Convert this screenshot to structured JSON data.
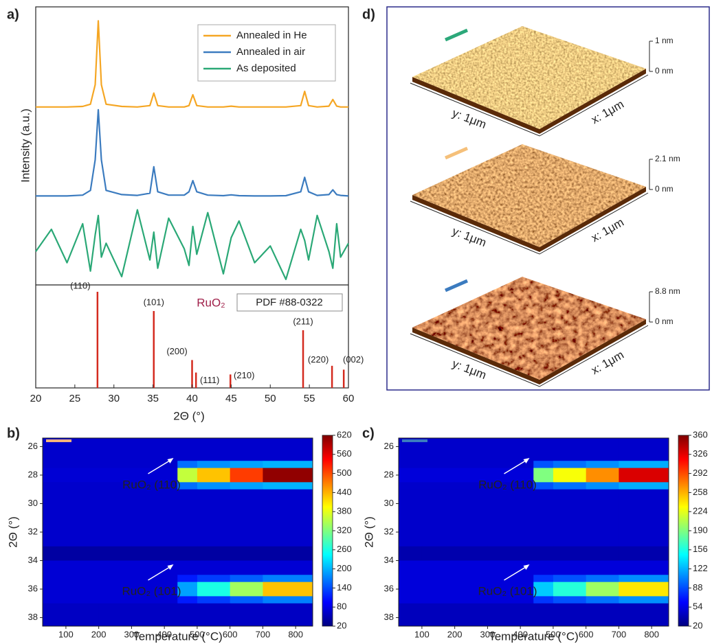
{
  "chart_data": [
    {
      "type": "line",
      "label": "a)",
      "ylabel": "Intensity (a.u.)",
      "xlim": [
        20,
        60
      ],
      "ylim": [
        0,
        100
      ],
      "legend": "upper right",
      "x": [
        20,
        22,
        24,
        26,
        27,
        27.6,
        28,
        28.4,
        29,
        31,
        33,
        34.6,
        35.1,
        35.6,
        37,
        39,
        39.6,
        40.1,
        40.6,
        42,
        44,
        45,
        46,
        48,
        50,
        52,
        53.9,
        54.4,
        54.9,
        56,
        57.5,
        58,
        58.5,
        59,
        60
      ],
      "series": [
        {
          "name": "Annealed in He",
          "color": "#f5a623",
          "values": [
            64,
            64,
            64,
            64.2,
            65,
            72,
            95,
            72,
            65,
            64.2,
            64,
            64.5,
            69,
            64.5,
            64,
            64,
            64.5,
            68.4,
            64.5,
            64,
            64,
            64.3,
            64,
            64,
            64,
            64,
            64.5,
            69.6,
            64.5,
            64,
            64.3,
            66.7,
            64.3,
            64,
            64
          ]
        },
        {
          "name": "Annealed in air",
          "color": "#3b7bbf",
          "values": [
            32,
            32,
            32,
            32.3,
            34,
            45,
            63,
            45,
            34,
            32.5,
            32.2,
            33,
            42.5,
            33.5,
            32.3,
            32.3,
            33.5,
            37.5,
            33.5,
            32.3,
            32.1,
            32.4,
            32.1,
            32,
            32,
            32.1,
            33.5,
            38.7,
            33.5,
            32.2,
            32.5,
            34.2,
            32.5,
            32.2,
            32
          ]
        },
        {
          "name": "As deposited",
          "color": "#2aa876",
          "values": [
            12,
            20,
            8,
            22,
            5,
            18,
            25,
            10,
            15,
            3,
            27,
            9,
            19,
            6,
            24,
            13,
            7,
            21,
            11,
            26,
            4,
            17,
            23,
            8,
            14,
            2,
            20,
            16,
            9,
            25,
            12,
            6,
            22,
            10,
            15
          ]
        }
      ]
    },
    {
      "type": "stick",
      "title": "RuO₂",
      "reference": "PDF #88-0322",
      "xlabel": "2Θ (°)",
      "color": "#d42a1e",
      "xlim": [
        20,
        60
      ],
      "xticks": [
        20,
        25,
        30,
        35,
        40,
        45,
        50,
        55,
        60
      ],
      "ylim": [
        0,
        100
      ],
      "categories": [
        "(110)",
        "(101)",
        "(200)",
        "(111)",
        "(210)",
        "(211)",
        "(220)",
        "(002)"
      ],
      "x": [
        27.9,
        35.1,
        40.0,
        40.5,
        44.9,
        54.2,
        57.9,
        59.4
      ],
      "values": [
        100,
        80,
        29,
        16,
        14,
        60,
        23,
        19
      ]
    },
    {
      "type": "heatmap",
      "label": "b)",
      "xlabel": "Temperature (°C)",
      "ylabel": "2Θ (°)",
      "colormap": "jet",
      "marker_color": "#f5b27a",
      "xlim": [
        29,
        852
      ],
      "ylim": [
        38.6,
        25.4
      ],
      "xticks": [
        100,
        200,
        300,
        400,
        500,
        600,
        700,
        800
      ],
      "yticks": [
        26,
        28,
        30,
        32,
        34,
        36,
        38
      ],
      "zlim": [
        20,
        620
      ],
      "zticks": [
        20,
        80,
        140,
        200,
        260,
        320,
        380,
        440,
        500,
        560,
        620
      ],
      "annotations": [
        "RuO₂ (110)",
        "RuO₂ (101)"
      ],
      "x_edges": [
        29,
        100,
        200,
        300,
        440,
        500,
        600,
        700,
        852
      ],
      "y_edges": [
        25.4,
        27,
        27.5,
        28.5,
        29,
        33,
        34,
        35,
        35.5,
        36.5,
        37,
        38.6
      ],
      "z": [
        [
          65,
          65,
          65,
          65,
          65,
          65,
          65,
          65
        ],
        [
          65,
          65,
          65,
          65,
          160,
          180,
          190,
          200
        ],
        [
          70,
          70,
          70,
          70,
          360,
          430,
          510,
          610
        ],
        [
          65,
          65,
          65,
          65,
          160,
          180,
          190,
          200
        ],
        [
          65,
          65,
          65,
          65,
          65,
          65,
          65,
          65
        ],
        [
          40,
          40,
          40,
          40,
          40,
          40,
          40,
          40
        ],
        [
          70,
          70,
          70,
          70,
          70,
          70,
          70,
          70
        ],
        [
          70,
          70,
          70,
          70,
          110,
          130,
          150,
          170
        ],
        [
          70,
          70,
          70,
          70,
          190,
          260,
          340,
          430
        ],
        [
          70,
          70,
          70,
          70,
          110,
          130,
          150,
          170
        ],
        [
          60,
          60,
          60,
          60,
          60,
          60,
          60,
          60
        ]
      ]
    },
    {
      "type": "heatmap",
      "label": "c)",
      "xlabel": "Temperature (°C)",
      "ylabel": "2Θ (°)",
      "colormap": "jet",
      "marker_color": "#3b7bbf",
      "xlim": [
        29,
        852
      ],
      "ylim": [
        38.6,
        25.4
      ],
      "xticks": [
        100,
        200,
        300,
        400,
        500,
        600,
        700,
        800
      ],
      "yticks": [
        26,
        28,
        30,
        32,
        34,
        36,
        38
      ],
      "zlim": [
        20,
        360
      ],
      "zticks": [
        20,
        54,
        88,
        122,
        156,
        190,
        224,
        258,
        292,
        326,
        360
      ],
      "annotations": [
        "RuO₂ (110)",
        "RuO₂ (101)"
      ],
      "x_edges": [
        29,
        100,
        200,
        300,
        440,
        500,
        600,
        700,
        852
      ],
      "y_edges": [
        25.4,
        27,
        27.5,
        28.5,
        29,
        33,
        34,
        35,
        35.5,
        36.5,
        37,
        38.6
      ],
      "z": [
        [
          45,
          45,
          45,
          45,
          45,
          45,
          45,
          45
        ],
        [
          45,
          45,
          45,
          45,
          90,
          100,
          110,
          120
        ],
        [
          50,
          50,
          50,
          50,
          190,
          230,
          270,
          330
        ],
        [
          45,
          45,
          45,
          45,
          90,
          100,
          110,
          120
        ],
        [
          45,
          45,
          45,
          45,
          45,
          45,
          45,
          45
        ],
        [
          35,
          35,
          35,
          35,
          35,
          35,
          35,
          35
        ],
        [
          50,
          50,
          50,
          50,
          50,
          50,
          50,
          50
        ],
        [
          50,
          50,
          50,
          50,
          80,
          90,
          100,
          110
        ],
        [
          50,
          50,
          50,
          50,
          130,
          160,
          200,
          240
        ],
        [
          50,
          50,
          50,
          50,
          80,
          90,
          100,
          110
        ],
        [
          40,
          40,
          40,
          40,
          40,
          40,
          40,
          40
        ]
      ]
    },
    {
      "type": "surface",
      "label": "d)",
      "images": [
        {
          "color": "#2ca87a",
          "x_label": "x: 1μm",
          "y_label": "y: 1μm",
          "zticks": [
            {
              "value": 0,
              "label": "0 nm"
            },
            {
              "value": 1,
              "label": "1 nm"
            }
          ]
        },
        {
          "color": "#f5c07a",
          "x_label": "x: 1μm",
          "y_label": "y: 1μm",
          "zticks": [
            {
              "value": 0,
              "label": "0 nm"
            },
            {
              "value": 2.1,
              "label": "2.1 nm"
            }
          ]
        },
        {
          "color": "#3b7bbf",
          "x_label": "x: 1μm",
          "y_label": "y: 1μm",
          "zticks": [
            {
              "value": 0,
              "label": "0 nm"
            },
            {
              "value": 8.8,
              "label": "8.8 nm"
            }
          ]
        }
      ]
    }
  ]
}
